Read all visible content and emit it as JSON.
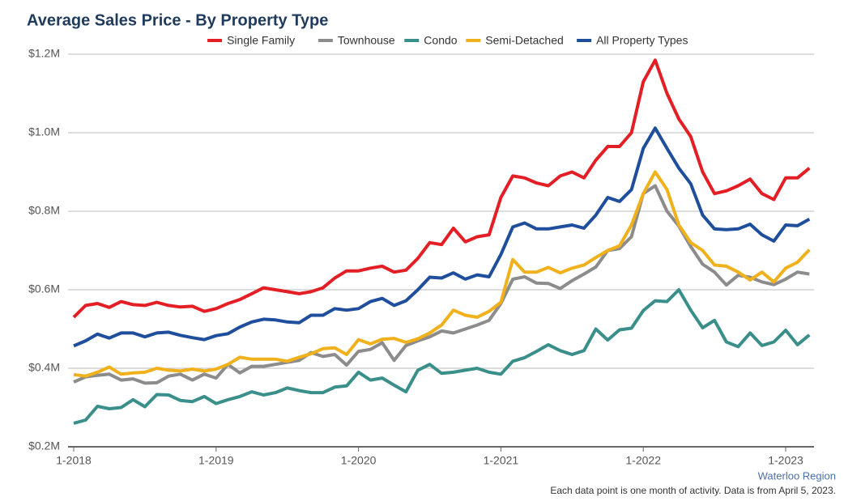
{
  "chart_data": {
    "type": "line",
    "title": "Average Sales Price - By Property Type",
    "source": "Waterloo Region",
    "note": "Each data point is one month of activity. Data is from April 5, 2023.",
    "categories": [
      "1-2018",
      null,
      null,
      null,
      null,
      null,
      null,
      null,
      null,
      null,
      null,
      null,
      "1-2019",
      null,
      null,
      null,
      null,
      null,
      null,
      null,
      null,
      null,
      null,
      null,
      "1-2020",
      null,
      null,
      null,
      null,
      null,
      null,
      null,
      null,
      null,
      null,
      null,
      "1-2021",
      null,
      null,
      null,
      null,
      null,
      null,
      null,
      null,
      null,
      null,
      null,
      "1-2022",
      null,
      null,
      null,
      null,
      null,
      null,
      null,
      null,
      null,
      null,
      null,
      "1-2023",
      null,
      null
    ],
    "ylim": [
      0.2,
      1.2
    ],
    "yticks": [
      {
        "value": 0.2,
        "label": "$0.2M"
      },
      {
        "value": 0.4,
        "label": "$0.4M"
      },
      {
        "value": 0.6,
        "label": "$0.6M"
      },
      {
        "value": 0.8,
        "label": "$0.8M"
      },
      {
        "value": 1.0,
        "label": "$1.0M"
      },
      {
        "value": 1.2,
        "label": "$1.2M"
      }
    ],
    "grid": true,
    "legend": "top",
    "series": [
      {
        "name": "Single Family",
        "color": "#e31e25",
        "values": [
          0.53,
          0.56,
          0.565,
          0.555,
          0.57,
          0.562,
          0.56,
          0.568,
          0.56,
          0.556,
          0.558,
          0.545,
          0.552,
          0.565,
          0.575,
          0.59,
          0.605,
          0.6,
          0.595,
          0.59,
          0.595,
          0.605,
          0.63,
          0.648,
          0.648,
          0.655,
          0.66,
          0.645,
          0.65,
          0.68,
          0.72,
          0.715,
          0.757,
          0.722,
          0.735,
          0.74,
          0.835,
          0.89,
          0.885,
          0.872,
          0.865,
          0.89,
          0.9,
          0.885,
          0.93,
          0.965,
          0.965,
          1.0,
          1.13,
          1.185,
          1.1,
          1.035,
          0.99,
          0.9,
          0.845,
          0.852,
          0.865,
          0.882,
          0.845,
          0.83,
          0.885,
          0.885,
          0.91
        ]
      },
      {
        "name": "Townhouse",
        "color": "#8c8c8c",
        "values": [
          0.365,
          0.378,
          0.382,
          0.385,
          0.37,
          0.373,
          0.362,
          0.363,
          0.38,
          0.385,
          0.37,
          0.385,
          0.375,
          0.41,
          0.388,
          0.405,
          0.405,
          0.41,
          0.415,
          0.42,
          0.44,
          0.43,
          0.435,
          0.408,
          0.443,
          0.448,
          0.465,
          0.42,
          0.458,
          0.47,
          0.48,
          0.495,
          0.49,
          0.5,
          0.51,
          0.522,
          0.565,
          0.627,
          0.633,
          0.617,
          0.616,
          0.603,
          0.623,
          0.64,
          0.658,
          0.7,
          0.705,
          0.735,
          0.845,
          0.865,
          0.8,
          0.762,
          0.71,
          0.665,
          0.645,
          0.612,
          0.637,
          0.632,
          0.62,
          0.613,
          0.627,
          0.645,
          0.64
        ]
      },
      {
        "name": "Condo",
        "color": "#3a8f8a",
        "values": [
          0.26,
          0.268,
          0.303,
          0.297,
          0.3,
          0.32,
          0.302,
          0.333,
          0.332,
          0.318,
          0.315,
          0.328,
          0.31,
          0.32,
          0.328,
          0.34,
          0.332,
          0.338,
          0.35,
          0.343,
          0.338,
          0.338,
          0.352,
          0.355,
          0.39,
          0.37,
          0.375,
          0.357,
          0.34,
          0.395,
          0.41,
          0.387,
          0.39,
          0.395,
          0.4,
          0.39,
          0.385,
          0.418,
          0.427,
          0.443,
          0.46,
          0.445,
          0.435,
          0.445,
          0.5,
          0.472,
          0.498,
          0.502,
          0.547,
          0.572,
          0.57,
          0.6,
          0.548,
          0.503,
          0.522,
          0.467,
          0.455,
          0.49,
          0.458,
          0.467,
          0.497,
          0.46,
          0.485
        ]
      },
      {
        "name": "Semi-Detached",
        "color": "#f0b11c",
        "values": [
          0.384,
          0.38,
          0.39,
          0.403,
          0.385,
          0.388,
          0.39,
          0.4,
          0.395,
          0.393,
          0.398,
          0.393,
          0.398,
          0.41,
          0.428,
          0.423,
          0.423,
          0.423,
          0.418,
          0.428,
          0.437,
          0.45,
          0.452,
          0.435,
          0.473,
          0.462,
          0.474,
          0.476,
          0.466,
          0.475,
          0.49,
          0.51,
          0.548,
          0.535,
          0.53,
          0.545,
          0.568,
          0.677,
          0.645,
          0.645,
          0.657,
          0.643,
          0.655,
          0.663,
          0.682,
          0.7,
          0.712,
          0.765,
          0.845,
          0.9,
          0.855,
          0.765,
          0.72,
          0.7,
          0.663,
          0.66,
          0.645,
          0.625,
          0.645,
          0.62,
          0.655,
          0.67,
          0.702
        ]
      },
      {
        "name": "All Property Types",
        "color": "#1f4e9c",
        "values": [
          0.457,
          0.47,
          0.487,
          0.477,
          0.49,
          0.49,
          0.48,
          0.49,
          0.492,
          0.484,
          0.478,
          0.473,
          0.483,
          0.488,
          0.505,
          0.518,
          0.525,
          0.523,
          0.518,
          0.516,
          0.535,
          0.535,
          0.552,
          0.548,
          0.552,
          0.57,
          0.578,
          0.56,
          0.572,
          0.6,
          0.632,
          0.63,
          0.643,
          0.627,
          0.638,
          0.633,
          0.69,
          0.76,
          0.77,
          0.755,
          0.755,
          0.76,
          0.765,
          0.757,
          0.79,
          0.835,
          0.825,
          0.855,
          0.96,
          1.012,
          0.96,
          0.91,
          0.87,
          0.79,
          0.755,
          0.753,
          0.755,
          0.767,
          0.74,
          0.724,
          0.765,
          0.763,
          0.78
        ]
      }
    ]
  }
}
